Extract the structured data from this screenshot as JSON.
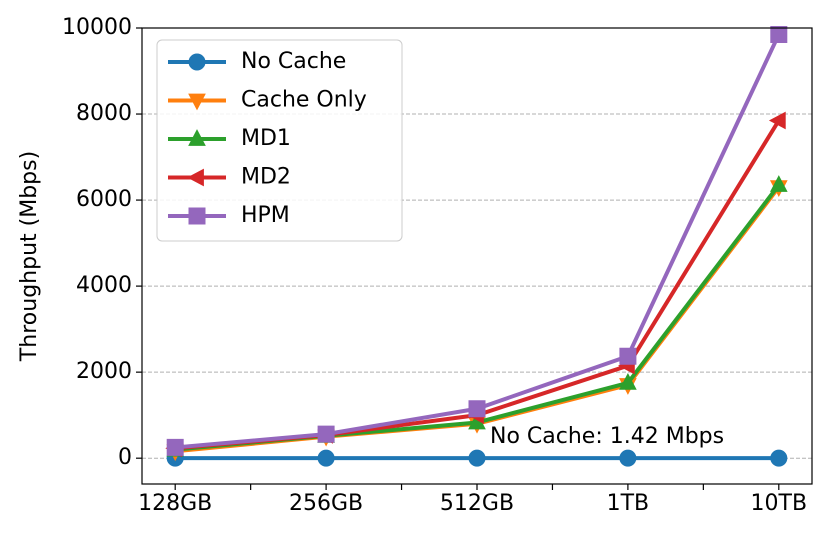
{
  "chart_data": {
    "type": "line",
    "ylabel": "Throughput (Mbps)",
    "annotation": "No Cache: 1.42 Mbps",
    "categories": [
      "128GB",
      "256GB",
      "512GB",
      "1TB",
      "10TB"
    ],
    "series": [
      {
        "name": "No Cache",
        "color": "#1f77b4",
        "marker": "circle",
        "values": [
          1.42,
          1.42,
          1.42,
          1.42,
          1.42
        ]
      },
      {
        "name": "Cache Only",
        "color": "#ff7f0e",
        "marker": "triangle-down",
        "values": [
          160,
          500,
          800,
          1700,
          6300
        ]
      },
      {
        "name": "MD1",
        "color": "#2ca02c",
        "marker": "triangle-up",
        "values": [
          200,
          520,
          830,
          1750,
          6350
        ]
      },
      {
        "name": "MD2",
        "color": "#d62728",
        "marker": "triangle-left",
        "values": [
          230,
          540,
          1000,
          2150,
          7850
        ]
      },
      {
        "name": "HPM",
        "color": "#9467bd",
        "marker": "square",
        "values": [
          250,
          560,
          1150,
          2370,
          9850
        ]
      }
    ],
    "ylim": [
      -600,
      10000
    ],
    "yticks": [
      0,
      2000,
      4000,
      6000,
      8000,
      10000
    ],
    "grid": true,
    "legend": "upper left"
  }
}
